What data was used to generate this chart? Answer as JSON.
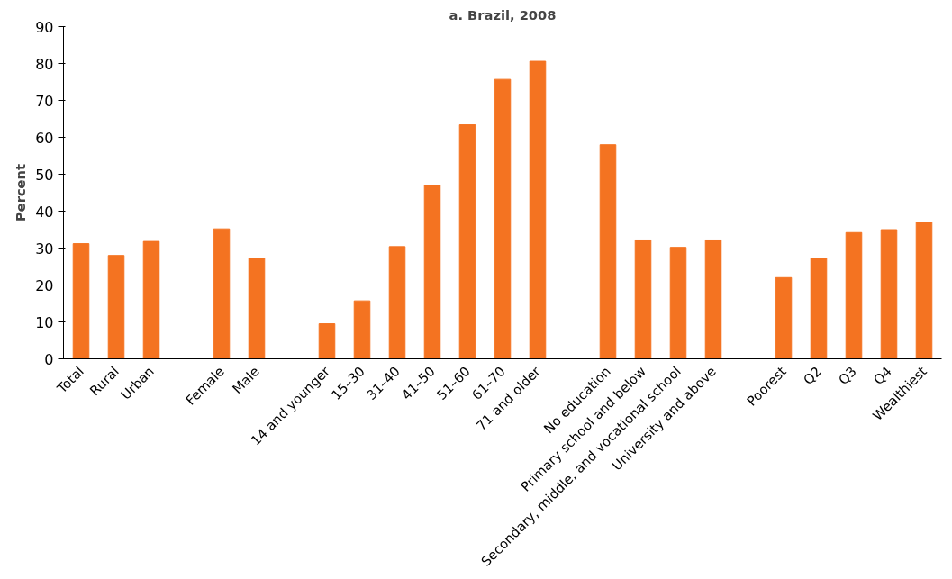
{
  "chart_data": {
    "type": "bar",
    "title": "a. Brazil, 2008",
    "ylabel": "Percent",
    "categories": [
      "Total",
      "Rural",
      "Urban",
      null,
      "Female",
      "Male",
      null,
      "14 and younger",
      "15–30",
      "31–40",
      "41–50",
      "51–60",
      "61–70",
      "71 and older",
      null,
      "No education",
      "Primary school and below",
      "Secondary, middle, and vocational school",
      "University and above",
      null,
      "Poorest",
      "Q2",
      "Q3",
      "Q4",
      "Wealthiest"
    ],
    "values": [
      31.2,
      28,
      31.8,
      null,
      35.2,
      27.2,
      null,
      9.5,
      15.7,
      30.4,
      47,
      63.4,
      75.7,
      80.6,
      null,
      58,
      32.2,
      30.2,
      32.2,
      null,
      22,
      27.2,
      34.2,
      35,
      37
    ],
    "color": "#f47321",
    "ylim": [
      0,
      90
    ],
    "yticks": [
      0,
      10,
      20,
      30,
      40,
      50,
      60,
      70,
      80,
      90
    ],
    "grid": false
  }
}
